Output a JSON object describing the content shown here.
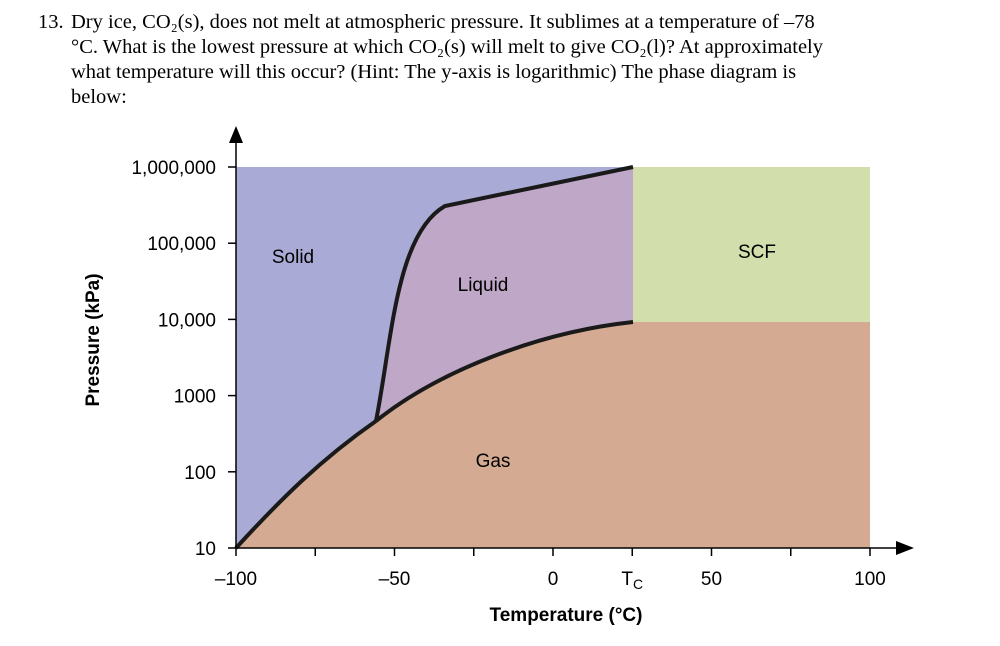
{
  "question": {
    "number": "13.",
    "lines": [
      "Dry ice, CO₂(s), does not melt at atmospheric pressure. It sublimes at a temperature of –78",
      "°C. What is the lowest pressure at which CO₂(s) will melt to give CO₂(l)? At approximately",
      "what temperature will this occur? (Hint: The y-axis is logarithmic) The phase diagram is",
      "below:"
    ]
  },
  "diagram": {
    "x_axis_label": "Temperature (°C)",
    "y_axis_label": "Pressure (kPa)",
    "x_ticks": [
      {
        "value": -100,
        "label": "–100"
      },
      {
        "value": -75,
        "label": ""
      },
      {
        "value": -50,
        "label": "–50"
      },
      {
        "value": -25,
        "label": ""
      },
      {
        "value": 0,
        "label": "0"
      },
      {
        "value": 25,
        "label": "T",
        "subscript": "C"
      },
      {
        "value": 50,
        "label": "50"
      },
      {
        "value": 75,
        "label": ""
      },
      {
        "value": 100,
        "label": "100"
      }
    ],
    "y_ticks": [
      {
        "value": 10,
        "label": "10"
      },
      {
        "value": 100,
        "label": "100"
      },
      {
        "value": 1000,
        "label": "1000"
      },
      {
        "value": 10000,
        "label": "10,000"
      },
      {
        "value": 100000,
        "label": "100,000"
      },
      {
        "value": 1000000,
        "label": "1,000,000"
      }
    ],
    "y_scale": "log",
    "regions": [
      {
        "name": "solid",
        "label": "Solid",
        "color": "#a9abd6"
      },
      {
        "name": "liquid",
        "label": "Liquid",
        "color": "#bfa7c8"
      },
      {
        "name": "gas",
        "label": "Gas",
        "color": "#d4aa93"
      },
      {
        "name": "scf",
        "label": "SCF",
        "color": "#d2deac"
      }
    ],
    "line_color": "#1a1a1a"
  }
}
